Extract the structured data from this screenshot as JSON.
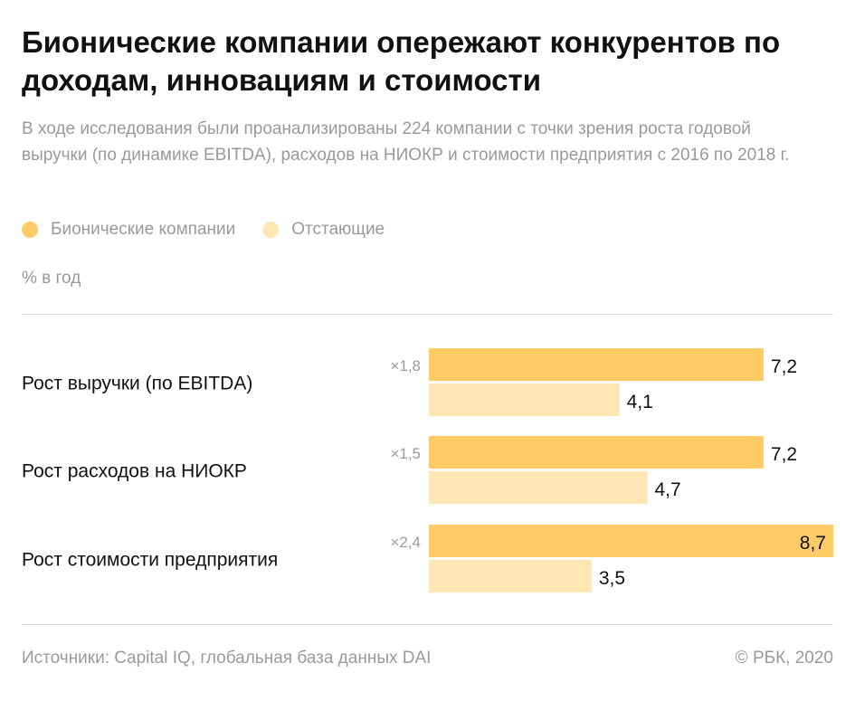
{
  "title": "Бионические компании опережают конкурентов по доходам, инновациям и стоимости",
  "subtitle": "В ходе исследования были проанализированы 224 компании с точки зрения роста годовой выручки (по динамике EBITDA), расходов на НИОКР и стоимости предприятия с 2016 по 2018 г.",
  "unit": "% в год",
  "colors": {
    "bionic": "#FFCB66",
    "laggard": "#FFE6B3",
    "muted_text": "#9A9A9A"
  },
  "chart_data": {
    "type": "bar",
    "orientation": "horizontal",
    "categories": [
      "Рост выручки (по EBITDA)",
      "Рост расходов на НИОКР",
      "Рост стоимости предприятия"
    ],
    "series": [
      {
        "name": "Бионические компании",
        "values": [
          7.2,
          7.2,
          8.7
        ],
        "labels": [
          "7,2",
          "7,2",
          "8,7"
        ]
      },
      {
        "name": "Отстающие",
        "values": [
          4.1,
          4.7,
          3.5
        ],
        "labels": [
          "4,1",
          "4,7",
          "3,5"
        ]
      }
    ],
    "multipliers": [
      "×1,8",
      "×1,5",
      "×2,4"
    ],
    "xlim": [
      0,
      8.7
    ],
    "grid": false,
    "legend": "top-left"
  },
  "footer": {
    "source": "Источники: Capital IQ, глобальная база данных DAI",
    "copyright": "©  РБК, 2020"
  }
}
